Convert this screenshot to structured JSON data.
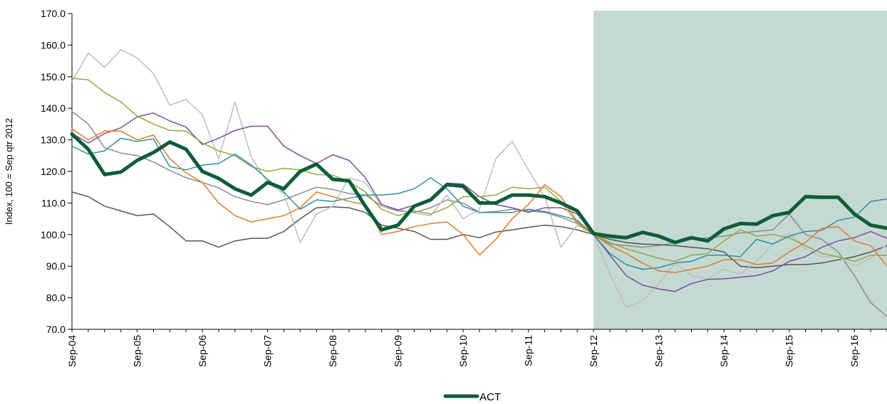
{
  "chart_data": {
    "type": "line",
    "ylabel": "Index, 100 = Sep qtr 2012",
    "xlabel": "",
    "ylim": [
      70,
      170
    ],
    "yticks": [
      "70.0",
      "80.0",
      "90.0",
      "100.0",
      "110.0",
      "120.0",
      "130.0",
      "140.0",
      "150.0",
      "160.0",
      "170.0"
    ],
    "x_tick_labels": [
      "Sep-04",
      "Sep-05",
      "Sep-06",
      "Sep-07",
      "Sep-08",
      "Sep-09",
      "Sep-10",
      "Sep-11",
      "Sep-12",
      "Sep-13",
      "Sep-14",
      "Sep-15",
      "Sep-16"
    ],
    "x_start": 2004.67,
    "x_end": 2017.17,
    "forecast_region": {
      "from": 2012.67,
      "to": 2017.17,
      "color": "#c5d9d3"
    },
    "grid": false,
    "legend_position": "bottom-center",
    "series": [
      {
        "name": "ACT",
        "color": "#0d5c3a",
        "width": 5,
        "x": [
          2004.67,
          2004.92,
          2005.17,
          2005.42,
          2005.67,
          2005.92,
          2006.17,
          2006.42,
          2006.67,
          2006.92,
          2007.17,
          2007.42,
          2007.67,
          2007.92,
          2008.17,
          2008.42,
          2008.67,
          2008.92,
          2009.17,
          2009.42,
          2009.67,
          2009.92,
          2010.17,
          2010.42,
          2010.67,
          2010.92,
          2011.17,
          2011.42,
          2011.67,
          2011.92,
          2012.17,
          2012.42,
          2012.67,
          2012.92,
          2013.17,
          2013.42,
          2013.67,
          2013.92,
          2014.17,
          2014.42,
          2014.67,
          2014.92,
          2015.17,
          2015.42,
          2015.67,
          2015.92,
          2016.17,
          2016.42,
          2016.67,
          2016.92,
          2017.17
        ],
        "values": [
          131.8,
          127.0,
          119.0,
          119.8,
          123.5,
          126.0,
          129.3,
          127.0,
          120.0,
          117.8,
          114.5,
          112.5,
          116.5,
          114.5,
          120.0,
          122.3,
          117.5,
          117.0,
          109.0,
          101.5,
          103.0,
          109.0,
          111.0,
          115.8,
          115.3,
          110.0,
          110.0,
          112.5,
          112.5,
          112.0,
          110.0,
          107.5,
          100.3,
          99.5,
          99.0,
          100.7,
          99.5,
          97.5,
          99.0,
          98.0,
          101.8,
          103.5,
          103.3,
          106.0,
          107.0,
          112.0,
          111.8,
          111.8,
          106.5,
          103.0,
          102.0
        ]
      },
      {
        "color": "#8c8c8c",
        "width": 1.5,
        "x": [
          2004.67,
          2004.92,
          2005.17,
          2005.42,
          2005.67,
          2005.92,
          2006.17,
          2006.42,
          2006.67,
          2006.92,
          2007.17,
          2007.42,
          2007.67,
          2007.92,
          2008.17,
          2008.42,
          2008.67,
          2008.92,
          2009.17,
          2009.42,
          2009.67,
          2009.92,
          2010.17,
          2010.42,
          2010.67,
          2010.92,
          2011.17,
          2011.42,
          2011.67,
          2011.92,
          2012.17,
          2012.42,
          2012.67,
          2012.92,
          2013.17,
          2013.42,
          2013.67,
          2013.92,
          2014.17,
          2014.42,
          2014.67,
          2014.92,
          2015.17,
          2015.42,
          2015.67,
          2015.92,
          2016.17,
          2016.42,
          2016.67,
          2016.92,
          2017.17
        ],
        "values": [
          139.0,
          135.0,
          127.5,
          125.8,
          125.0,
          123.0,
          120.3,
          118.0,
          116.5,
          114.8,
          112.0,
          110.5,
          109.5,
          111.0,
          113.0,
          115.0,
          114.3,
          113.0,
          112.5,
          109.0,
          107.5,
          107.0,
          108.5,
          111.0,
          110.0,
          107.0,
          107.3,
          108.0,
          107.5,
          107.0,
          105.5,
          103.5,
          100.0,
          97.0,
          96.5,
          96.0,
          96.5,
          97.5,
          98.5,
          99.0,
          99.5,
          100.5,
          101.0,
          101.5,
          106.5,
          100.0,
          98.5,
          94.5,
          87.0,
          78.5,
          74.0
        ]
      },
      {
        "color": "#555555",
        "width": 1.5,
        "x": [
          2004.67,
          2004.92,
          2005.17,
          2005.42,
          2005.67,
          2005.92,
          2006.17,
          2006.42,
          2006.67,
          2006.92,
          2007.17,
          2007.42,
          2007.67,
          2007.92,
          2008.17,
          2008.42,
          2008.67,
          2008.92,
          2009.17,
          2009.42,
          2009.67,
          2009.92,
          2010.17,
          2010.42,
          2010.67,
          2010.92,
          2011.17,
          2011.42,
          2011.67,
          2011.92,
          2012.17,
          2012.42,
          2012.67,
          2012.92,
          2013.17,
          2013.42,
          2013.67,
          2013.92,
          2014.17,
          2014.42,
          2014.67,
          2014.92,
          2015.17,
          2015.42,
          2015.67,
          2015.92,
          2016.17,
          2016.42,
          2016.67,
          2016.92,
          2017.17
        ],
        "values": [
          113.5,
          112.0,
          109.0,
          107.5,
          106.0,
          106.5,
          102.5,
          98.0,
          98.0,
          96.0,
          98.0,
          98.8,
          98.8,
          101.0,
          105.0,
          108.5,
          108.8,
          108.5,
          107.0,
          103.0,
          102.0,
          101.0,
          98.5,
          98.5,
          100.0,
          99.0,
          100.8,
          101.5,
          102.3,
          103.0,
          102.5,
          101.5,
          100.0,
          98.5,
          97.5,
          97.0,
          96.8,
          96.5,
          96.0,
          95.5,
          94.5,
          90.0,
          89.5,
          90.0,
          90.5,
          90.5,
          91.0,
          92.0,
          93.0,
          94.5,
          96.5
        ]
      },
      {
        "color": "#bdbdbd",
        "width": 1.5,
        "x": [
          2004.67,
          2004.92,
          2005.17,
          2005.42,
          2005.67,
          2005.92,
          2006.17,
          2006.42,
          2006.67,
          2006.92,
          2007.17,
          2007.42,
          2007.67,
          2007.92,
          2008.17,
          2008.42,
          2008.67,
          2008.92,
          2009.17,
          2009.42,
          2009.67,
          2009.92,
          2010.17,
          2010.42,
          2010.67,
          2010.92,
          2011.17,
          2011.42,
          2011.67,
          2011.92,
          2012.17,
          2012.42,
          2012.67,
          2012.92,
          2013.17,
          2013.42,
          2013.67,
          2013.92,
          2014.17,
          2014.42,
          2014.67,
          2014.92,
          2015.17,
          2015.42,
          2015.67,
          2015.92,
          2016.17,
          2016.42,
          2016.67,
          2016.92,
          2017.17
        ],
        "values": [
          148.5,
          157.5,
          153.0,
          158.5,
          156.0,
          151.0,
          141.0,
          142.8,
          138.0,
          124.0,
          142.0,
          124.5,
          116.5,
          113.0,
          97.5,
          106.5,
          109.0,
          118.0,
          116.5,
          109.0,
          108.0,
          106.8,
          106.0,
          112.5,
          105.0,
          108.0,
          124.0,
          129.5,
          120.5,
          112.0,
          96.0,
          103.0,
          100.0,
          87.5,
          77.0,
          79.0,
          84.5,
          91.0,
          87.0,
          86.0,
          89.0,
          87.5,
          91.5,
          97.0,
          100.5,
          95.5,
          93.0,
          93.0,
          90.0,
          92.5,
          97.0
        ]
      },
      {
        "color": "#7a4f9c",
        "width": 1.5,
        "x": [
          2004.67,
          2004.92,
          2005.17,
          2005.42,
          2005.67,
          2005.92,
          2006.17,
          2006.42,
          2006.67,
          2006.92,
          2007.17,
          2007.42,
          2007.67,
          2007.92,
          2008.17,
          2008.42,
          2008.67,
          2008.92,
          2009.17,
          2009.42,
          2009.67,
          2009.92,
          2010.17,
          2010.42,
          2010.67,
          2010.92,
          2011.17,
          2011.42,
          2011.67,
          2011.92,
          2012.17,
          2012.42,
          2012.67,
          2012.92,
          2013.17,
          2013.42,
          2013.67,
          2013.92,
          2014.17,
          2014.42,
          2014.67,
          2014.92,
          2015.17,
          2015.42,
          2015.67,
          2015.92,
          2016.17,
          2016.42,
          2016.67,
          2016.92,
          2017.17
        ],
        "values": [
          132.0,
          129.0,
          132.0,
          133.8,
          137.3,
          138.5,
          136.0,
          134.0,
          128.5,
          130.5,
          133.0,
          134.3,
          134.3,
          128.0,
          125.0,
          122.5,
          125.3,
          123.5,
          118.0,
          109.5,
          107.8,
          109.3,
          111.0,
          116.3,
          116.0,
          112.0,
          109.5,
          108.5,
          107.0,
          108.5,
          108.5,
          106.5,
          100.0,
          93.5,
          87.0,
          84.0,
          82.8,
          82.0,
          84.5,
          85.8,
          86.0,
          86.5,
          87.0,
          88.5,
          91.5,
          93.0,
          96.0,
          98.0,
          99.0,
          101.0,
          98.8
        ]
      },
      {
        "color": "#8faa3f",
        "width": 1.5,
        "x": [
          2004.67,
          2004.92,
          2005.17,
          2005.42,
          2005.67,
          2005.92,
          2006.17,
          2006.42,
          2006.67,
          2006.92,
          2007.17,
          2007.42,
          2007.67,
          2007.92,
          2008.17,
          2008.42,
          2008.67,
          2008.92,
          2009.17,
          2009.42,
          2009.67,
          2009.92,
          2010.17,
          2010.42,
          2010.67,
          2010.92,
          2011.17,
          2011.42,
          2011.67,
          2011.92,
          2012.17,
          2012.42,
          2012.67,
          2012.92,
          2013.17,
          2013.42,
          2013.67,
          2013.92,
          2014.17,
          2014.42,
          2014.67,
          2014.92,
          2015.17,
          2015.42,
          2015.67,
          2015.92,
          2016.17,
          2016.42,
          2016.67,
          2016.92,
          2017.17
        ],
        "values": [
          149.5,
          149.0,
          145.0,
          142.0,
          137.5,
          135.0,
          133.0,
          132.8,
          129.0,
          126.5,
          125.0,
          121.5,
          120.0,
          121.0,
          120.5,
          119.0,
          118.8,
          116.8,
          113.5,
          108.0,
          106.0,
          107.5,
          106.5,
          108.5,
          112.0,
          112.0,
          112.5,
          115.0,
          114.5,
          115.0,
          110.5,
          103.5,
          100.0,
          97.5,
          95.5,
          94.0,
          92.5,
          91.5,
          93.5,
          94.0,
          98.0,
          101.5,
          99.5,
          100.0,
          99.0,
          96.5,
          94.0,
          93.0,
          91.5,
          93.5,
          93.5
        ]
      },
      {
        "color": "#2f8fa4",
        "width": 1.5,
        "x": [
          2004.67,
          2004.92,
          2005.17,
          2005.42,
          2005.67,
          2005.92,
          2006.17,
          2006.42,
          2006.67,
          2006.92,
          2007.17,
          2007.42,
          2007.67,
          2007.92,
          2008.17,
          2008.42,
          2008.67,
          2008.92,
          2009.17,
          2009.42,
          2009.67,
          2009.92,
          2010.17,
          2010.42,
          2010.67,
          2010.92,
          2011.17,
          2011.42,
          2011.67,
          2011.92,
          2012.17,
          2012.42,
          2012.67,
          2012.92,
          2013.17,
          2013.42,
          2013.67,
          2013.92,
          2014.17,
          2014.42,
          2014.67,
          2014.92,
          2015.17,
          2015.42,
          2015.67,
          2015.92,
          2016.17,
          2016.42,
          2016.67,
          2016.92,
          2017.17
        ],
        "values": [
          128.0,
          125.5,
          126.5,
          130.5,
          129.5,
          130.3,
          121.5,
          120.5,
          122.0,
          122.5,
          125.5,
          122.0,
          117.5,
          113.5,
          108.0,
          111.0,
          110.5,
          111.5,
          112.5,
          112.5,
          113.0,
          114.5,
          118.0,
          114.5,
          109.0,
          107.0,
          107.0,
          107.0,
          108.0,
          107.3,
          106.0,
          104.5,
          100.0,
          94.0,
          90.5,
          89.0,
          89.5,
          91.0,
          91.5,
          93.5,
          93.5,
          93.0,
          98.5,
          97.0,
          99.5,
          101.0,
          101.3,
          104.5,
          105.5,
          110.5,
          111.3
        ]
      },
      {
        "color": "#e07b29",
        "width": 1.5,
        "x": [
          2004.67,
          2004.92,
          2005.17,
          2005.42,
          2005.67,
          2005.92,
          2006.17,
          2006.42,
          2006.67,
          2006.92,
          2007.17,
          2007.42,
          2007.67,
          2007.92,
          2008.17,
          2008.42,
          2008.67,
          2008.92,
          2009.17,
          2009.42,
          2009.67,
          2009.92,
          2010.17,
          2010.42,
          2010.67,
          2010.92,
          2011.17,
          2011.42,
          2011.67,
          2011.92,
          2012.17,
          2012.42,
          2012.67,
          2012.92,
          2013.17,
          2013.42,
          2013.67,
          2013.92,
          2014.17,
          2014.42,
          2014.67,
          2014.92,
          2015.17,
          2015.42,
          2015.67,
          2015.92,
          2016.17,
          2016.42,
          2016.67,
          2016.92,
          2017.17
        ],
        "values": [
          133.5,
          130.0,
          132.8,
          132.8,
          130.0,
          131.5,
          124.0,
          119.5,
          116.5,
          110.0,
          106.0,
          104.0,
          105.0,
          106.0,
          108.5,
          113.5,
          112.0,
          110.5,
          109.5,
          100.0,
          101.0,
          102.5,
          103.5,
          104.0,
          100.0,
          93.5,
          98.5,
          105.0,
          109.5,
          115.8,
          112.0,
          104.0,
          100.0,
          96.5,
          94.0,
          91.0,
          88.5,
          88.0,
          89.0,
          90.0,
          92.0,
          92.0,
          90.5,
          91.0,
          94.5,
          97.5,
          102.0,
          102.5,
          98.0,
          96.5,
          90.0
        ]
      }
    ]
  }
}
